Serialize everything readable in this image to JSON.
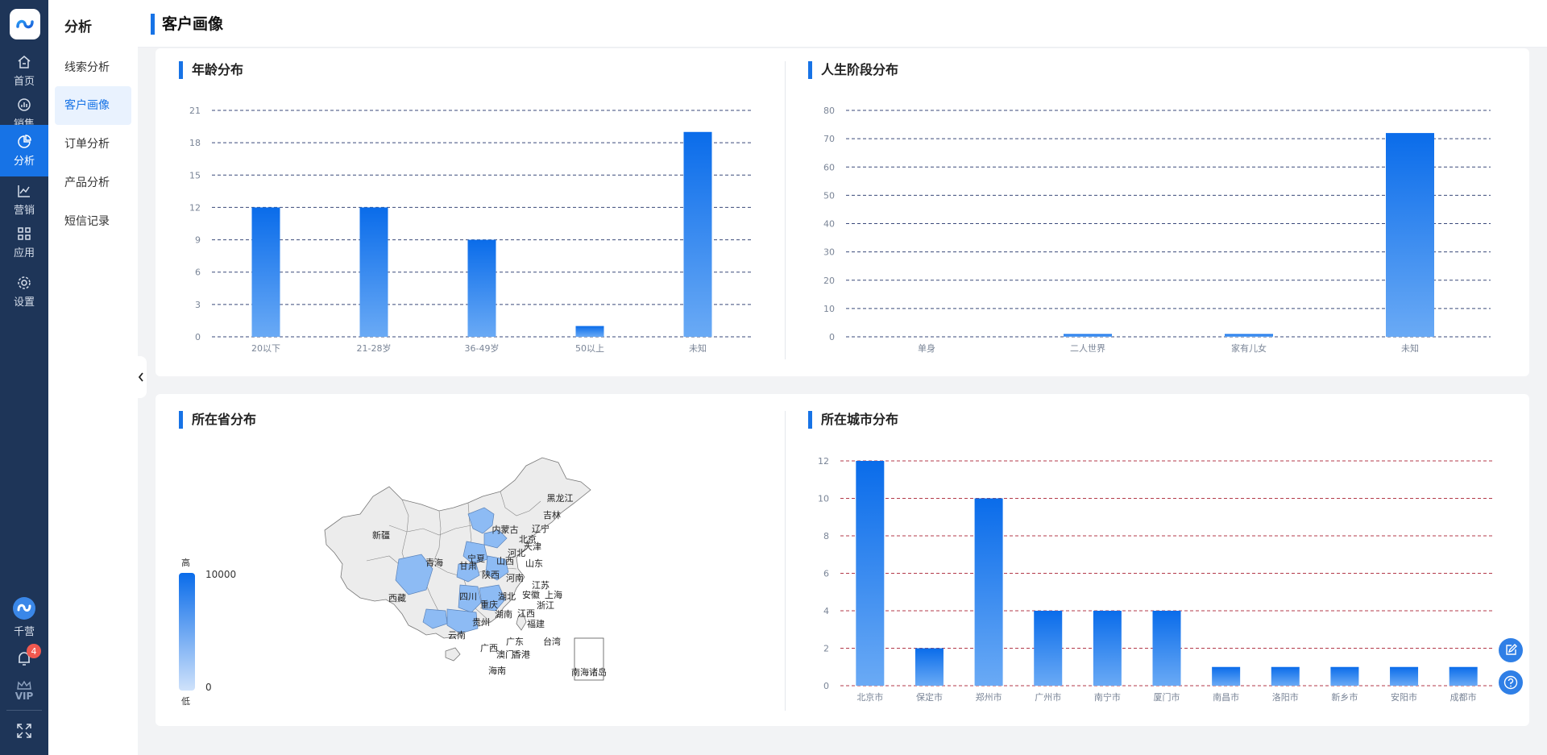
{
  "rail": {
    "items": [
      {
        "label": "首页",
        "icon": "home-icon"
      },
      {
        "label": "销售",
        "icon": "sales-icon"
      },
      {
        "label": "分析",
        "icon": "analysis-icon",
        "active": true
      },
      {
        "label": "营销",
        "icon": "marketing-icon"
      },
      {
        "label": "应用",
        "icon": "apps-icon"
      },
      {
        "label": "设置",
        "icon": "settings-icon"
      }
    ],
    "brand_label": "千营",
    "notification_count": "4",
    "vip_label": "VIP"
  },
  "subnav": {
    "title": "分析",
    "items": [
      {
        "label": "线索分析"
      },
      {
        "label": "客户画像",
        "active": true
      },
      {
        "label": "订单分析"
      },
      {
        "label": "产品分析"
      },
      {
        "label": "短信记录"
      }
    ]
  },
  "header": {
    "title": "客户画像"
  },
  "colors": {
    "accent": "#1773e6",
    "bar_top": "#0a6cea",
    "bar_bottom": "#6aaaf5",
    "map_highlight": "#8dbbf4",
    "map_base": "#ececec"
  },
  "sections": {
    "age": "年龄分布",
    "life_stage": "人生阶段分布",
    "province": "所在省分布",
    "city": "所在城市分布"
  },
  "map": {
    "legend_high": "高",
    "legend_low": "低",
    "legend_max": "10000",
    "legend_min": "0",
    "labels": [
      "黑龙江",
      "吉林",
      "辽宁",
      "内蒙古",
      "北京",
      "天津",
      "河北",
      "山西",
      "山东",
      "宁夏",
      "甘肃",
      "陕西",
      "河南",
      "江苏",
      "上海",
      "安徽",
      "湖北",
      "浙江",
      "四川",
      "重庆",
      "湖南",
      "江西",
      "福建",
      "贵州",
      "云南",
      "广西",
      "广东",
      "香港",
      "澳门",
      "台湾",
      "海南",
      "新疆",
      "青海",
      "西藏",
      "南海诸岛"
    ],
    "highlighted": [
      "北京",
      "天津",
      "河北",
      "山东",
      "河南",
      "湖北",
      "安徽",
      "江苏",
      "浙江",
      "四川",
      "江西",
      "湖南",
      "福建",
      "广东",
      "广西",
      "贵州",
      "重庆"
    ]
  },
  "chart_data": [
    {
      "type": "bar",
      "title": "年龄分布",
      "categories": [
        "20以下",
        "21-28岁",
        "36-49岁",
        "50以上",
        "未知"
      ],
      "values": [
        12,
        12,
        9,
        1,
        19
      ],
      "ylim": [
        0,
        21
      ],
      "yticks": [
        "0",
        "3",
        "6",
        "9",
        "12",
        "15",
        "18",
        "21"
      ],
      "grid": true
    },
    {
      "type": "bar",
      "title": "人生阶段分布",
      "categories": [
        "单身",
        "二人世界",
        "家有儿女",
        "未知"
      ],
      "values": [
        0,
        1,
        1,
        72
      ],
      "ylim": [
        0,
        80
      ],
      "yticks": [
        "0",
        "10",
        "20",
        "30",
        "40",
        "50",
        "60",
        "70",
        "80"
      ],
      "grid": true
    },
    {
      "type": "bar",
      "title": "所在城市分布",
      "categories": [
        "北京市",
        "保定市",
        "郑州市",
        "广州市",
        "南宁市",
        "厦门市",
        "南昌市",
        "洛阳市",
        "新乡市",
        "安阳市",
        "成都市"
      ],
      "values": [
        12,
        2,
        10,
        4,
        4,
        4,
        1,
        1,
        1,
        1,
        1
      ],
      "ylim": [
        0,
        12
      ],
      "yticks": [
        "0",
        "2",
        "4",
        "6",
        "8",
        "10",
        "12"
      ],
      "grid": true
    }
  ]
}
